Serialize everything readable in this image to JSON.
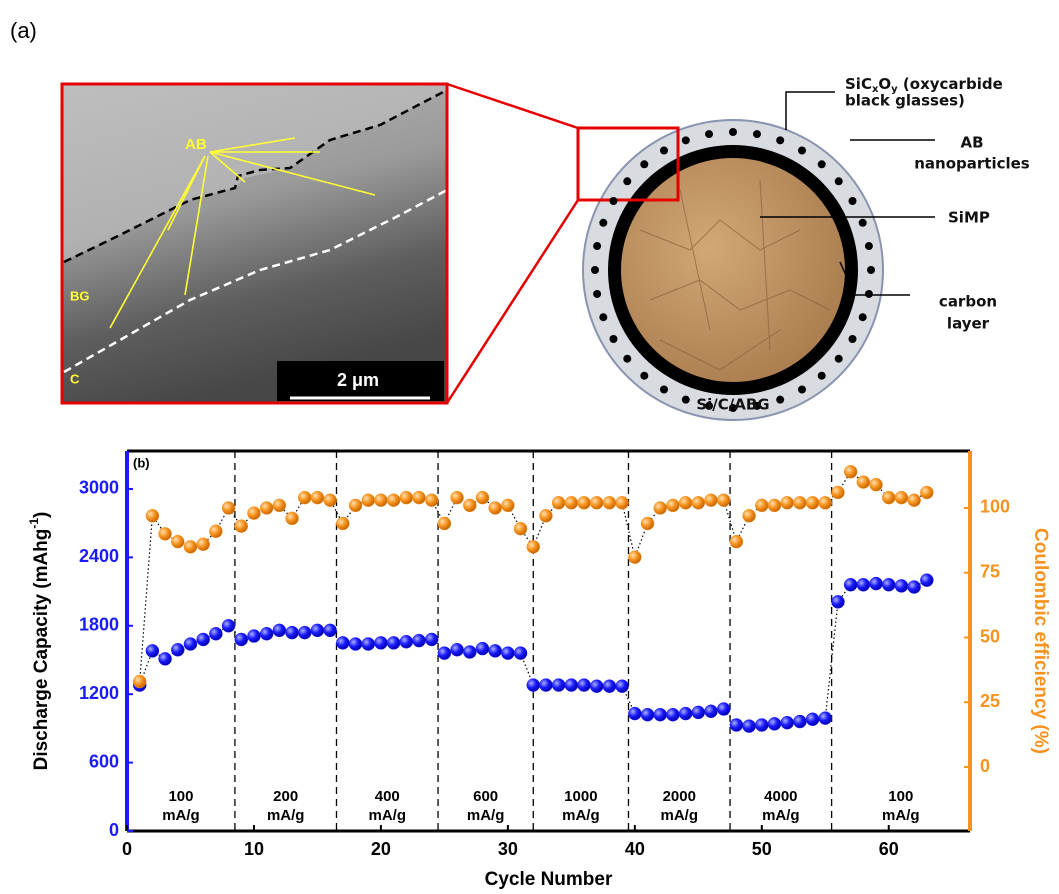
{
  "figure_a": {
    "panel_label": "(a)",
    "tem_labels": {
      "ab": "AB",
      "bg": "BG",
      "c": "C",
      "scale_bar": "2 μm"
    },
    "shell_label": {
      "base": "SiC",
      "sub1": "x",
      "mid": "O",
      "sub2": "y",
      "rest": " (oxycarbide",
      "line2": "black glasses)"
    },
    "ab_label": [
      "AB",
      "nanoparticles"
    ],
    "simp_label": "SiMP",
    "carbon_label": [
      "carbon",
      "layer"
    ],
    "caption": "Si/C/ABG"
  },
  "chart_data": {
    "type": "scatter",
    "panel_label": "(b)",
    "xlabel": "Cycle Number",
    "ylabel": {
      "text": "Discharge Capacity (mAhg",
      "sup": "-1",
      "end": ")"
    },
    "y2label": "Coulombic efficiency (%)",
    "xlim": [
      0,
      66.4
    ],
    "xticks": [
      0,
      10,
      20,
      30,
      40,
      50,
      60
    ],
    "ylim": [
      0,
      3333
    ],
    "yticks": [
      0,
      600,
      1200,
      1800,
      2400,
      3000
    ],
    "y2lim": [
      -24.7,
      122
    ],
    "y2ticks": [
      0,
      25,
      50,
      75,
      100
    ],
    "dividers": [
      8.5,
      16.5,
      24.5,
      32,
      39.5,
      47.5,
      55.5
    ],
    "rates": [
      {
        "rate": "100",
        "unit": "mA/g"
      },
      {
        "rate": "200",
        "unit": "mA/g"
      },
      {
        "rate": "400",
        "unit": "mA/g"
      },
      {
        "rate": "600",
        "unit": "mA/g"
      },
      {
        "rate": "1000",
        "unit": "mA/g"
      },
      {
        "rate": "2000",
        "unit": "mA/g"
      },
      {
        "rate": "4000",
        "unit": "mA/g"
      },
      {
        "rate": "100",
        "unit": "mA/g"
      }
    ],
    "x": [
      1,
      2,
      3,
      4,
      5,
      6,
      7,
      8,
      9,
      10,
      11,
      12,
      13,
      14,
      15,
      16,
      17,
      18,
      19,
      20,
      21,
      22,
      23,
      24,
      25,
      26,
      27,
      28,
      29,
      30,
      31,
      32,
      33,
      34,
      35,
      36,
      37,
      38,
      39,
      40,
      41,
      42,
      43,
      44,
      45,
      46,
      47,
      48,
      49,
      50,
      51,
      52,
      53,
      54,
      55,
      56,
      57,
      58,
      59,
      60,
      61,
      62,
      63
    ],
    "series": [
      {
        "color": "#1a1aff",
        "axis": "y",
        "values": [
          1280,
          1580,
          1510,
          1590,
          1640,
          1680,
          1730,
          1800,
          1680,
          1710,
          1730,
          1760,
          1740,
          1740,
          1760,
          1760,
          1650,
          1640,
          1640,
          1650,
          1650,
          1660,
          1670,
          1680,
          1560,
          1590,
          1570,
          1600,
          1580,
          1560,
          1560,
          1280,
          1280,
          1280,
          1280,
          1280,
          1270,
          1270,
          1270,
          1030,
          1020,
          1020,
          1020,
          1030,
          1040,
          1050,
          1070,
          930,
          920,
          930,
          940,
          950,
          960,
          980,
          990,
          2010,
          2160,
          2160,
          2170,
          2160,
          2150,
          2140,
          2200
        ]
      },
      {
        "color": "#f7931e",
        "axis": "y2",
        "values": [
          33,
          97,
          90,
          87,
          85,
          86,
          91,
          100,
          93,
          98,
          100,
          101,
          96,
          104,
          104,
          103,
          94,
          101,
          103,
          103,
          103,
          104,
          104,
          103,
          94,
          104,
          101,
          104,
          100,
          101,
          92,
          85,
          97,
          102,
          102,
          102,
          102,
          102,
          102,
          81,
          94,
          100,
          101,
          102,
          102,
          103,
          103,
          87,
          97,
          101,
          101,
          102,
          102,
          102,
          102,
          106,
          114,
          110,
          109,
          104,
          104,
          103,
          106
        ]
      }
    ]
  }
}
